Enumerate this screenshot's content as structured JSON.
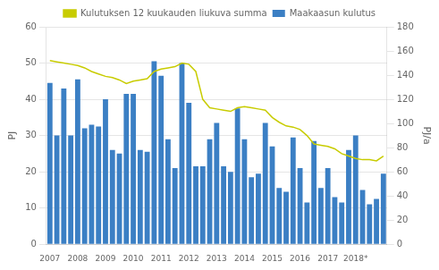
{
  "chart_data": {
    "type": "bar",
    "ylabel": "PJ",
    "y2label": "PJ/a",
    "categories": [
      "2007",
      null,
      null,
      null,
      "2008",
      null,
      null,
      null,
      "2009",
      null,
      null,
      null,
      "2010",
      null,
      null,
      null,
      "2011",
      null,
      null,
      null,
      "2012",
      null,
      null,
      null,
      "2013",
      null,
      null,
      null,
      "2014",
      null,
      null,
      null,
      "2015",
      null,
      null,
      null,
      "2016",
      null,
      null,
      null,
      "2017",
      null,
      null,
      null,
      "2018*",
      null,
      null,
      null,
      null
    ],
    "series": [
      {
        "name": "Maakaasun kulutus",
        "type": "bar",
        "color": "#3B7FC4",
        "values": [
          44.5,
          30.0,
          43.0,
          30.0,
          45.5,
          32.0,
          33.0,
          32.5,
          40.0,
          26.0,
          25.0,
          41.5,
          41.5,
          26.0,
          25.5,
          50.5,
          46.5,
          29.0,
          21.0,
          50.0,
          39.0,
          21.5,
          21.5,
          29.0,
          33.5,
          21.5,
          20.0,
          37.5,
          29.0,
          18.5,
          19.5,
          33.5,
          27.0,
          15.5,
          14.5,
          29.5,
          21.0,
          11.5,
          28.5,
          15.5,
          21.0,
          13.0,
          11.5,
          26.0,
          30.0,
          15.0,
          11.0,
          12.5,
          19.5
        ]
      },
      {
        "name": "Kulutuksen 12 kuukauden liukuva summa",
        "type": "line",
        "color": "#C8CC00",
        "axis": "y2",
        "marker": "none",
        "values": [
          152,
          151,
          150,
          149,
          148,
          146,
          143,
          141,
          139,
          138,
          136,
          133,
          135,
          136,
          137,
          143,
          145,
          146,
          147,
          150,
          149,
          143,
          120,
          113,
          112,
          111,
          110,
          113,
          114,
          113,
          112,
          111,
          105,
          101,
          98,
          97,
          95,
          90,
          83,
          82,
          81,
          79,
          75,
          73,
          71,
          70,
          70,
          69,
          73
        ]
      }
    ],
    "ylim": [
      0,
      60
    ],
    "yticks": [
      0,
      10,
      20,
      30,
      40,
      50,
      60
    ],
    "y2lim": [
      0,
      180
    ],
    "y2ticks": [
      0,
      20,
      40,
      60,
      80,
      100,
      120,
      140,
      160,
      180
    ],
    "grid": true,
    "legend": "top"
  }
}
